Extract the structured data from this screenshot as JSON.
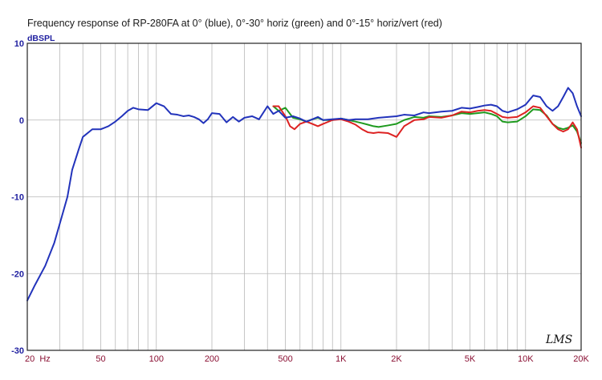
{
  "chart_data": {
    "type": "line",
    "title": "Frequency response of RP-280FA at 0° (blue), 0°-30° horiz (green) and 0°-15° horiz/vert (red)",
    "ylabel": "dBSPL",
    "xlabel": "",
    "x_scale": "log",
    "xlim": [
      20,
      20000
    ],
    "ylim": [
      -30,
      10
    ],
    "grid": true,
    "y_ticks": [
      "10",
      "0",
      "-10",
      "-20",
      "-30"
    ],
    "x_ticks": [
      {
        "value": 20,
        "label": "20  Hz"
      },
      {
        "value": 50,
        "label": "50"
      },
      {
        "value": 100,
        "label": "100"
      },
      {
        "value": 200,
        "label": "200"
      },
      {
        "value": 500,
        "label": "500"
      },
      {
        "value": 1000,
        "label": "1K"
      },
      {
        "value": 2000,
        "label": "2K"
      },
      {
        "value": 5000,
        "label": "5K"
      },
      {
        "value": 10000,
        "label": "10K"
      },
      {
        "value": 20000,
        "label": "20K"
      }
    ],
    "watermark": "LMS",
    "series": [
      {
        "color": "#2233bb",
        "x": [
          20,
          22,
          25,
          28,
          30,
          33,
          35,
          38,
          40,
          45,
          50,
          55,
          60,
          65,
          70,
          75,
          80,
          90,
          100,
          110,
          120,
          130,
          140,
          150,
          160,
          170,
          180,
          190,
          200,
          220,
          240,
          260,
          280,
          300,
          330,
          360,
          400,
          430,
          460,
          500,
          550,
          600,
          650,
          700,
          750,
          800,
          900,
          1000,
          1100,
          1200,
          1400,
          1600,
          1800,
          2000,
          2200,
          2500,
          2800,
          3000,
          3500,
          4000,
          4500,
          5000,
          5500,
          6000,
          6500,
          7000,
          7500,
          8000,
          9000,
          10000,
          11000,
          12000,
          13000,
          14000,
          15000,
          16000,
          17000,
          18000,
          19000,
          20000
        ],
        "y": [
          -23.5,
          -21.5,
          -19,
          -16,
          -13.5,
          -10,
          -6.5,
          -3.8,
          -2.2,
          -1.2,
          -1.2,
          -0.8,
          -0.2,
          0.5,
          1.2,
          1.6,
          1.4,
          1.3,
          2.2,
          1.8,
          0.8,
          0.7,
          0.5,
          0.6,
          0.4,
          0.1,
          -0.4,
          0.1,
          0.9,
          0.8,
          -0.3,
          0.4,
          -0.2,
          0.3,
          0.5,
          0.1,
          1.8,
          0.8,
          1.2,
          0.3,
          0.5,
          0.2,
          -0.2,
          0.1,
          0.4,
          0.0,
          0.1,
          0.2,
          0.0,
          0.1,
          0.1,
          0.3,
          0.4,
          0.5,
          0.7,
          0.6,
          1.0,
          0.9,
          1.1,
          1.2,
          1.6,
          1.5,
          1.7,
          1.9,
          2.0,
          1.8,
          1.2,
          1.0,
          1.4,
          2.0,
          3.2,
          3.0,
          1.8,
          1.2,
          1.8,
          3.0,
          4.2,
          3.5,
          1.8,
          0.5
        ]
      },
      {
        "color": "#1e9a1e",
        "x": [
          430,
          460,
          500,
          550,
          600,
          650,
          700,
          750,
          800,
          900,
          1000,
          1100,
          1200,
          1300,
          1400,
          1500,
          1600,
          1800,
          2000,
          2200,
          2500,
          2800,
          3000,
          3500,
          4000,
          4500,
          5000,
          5500,
          6000,
          6500,
          7000,
          7500,
          8000,
          9000,
          10000,
          11000,
          12000,
          13000,
          14000,
          15000,
          16000,
          17000,
          18000,
          19000,
          20000
        ],
        "y": [
          1.8,
          1.2,
          1.6,
          0.3,
          0.1,
          -0.2,
          0.1,
          0.3,
          0.0,
          0.0,
          0.2,
          0.0,
          -0.2,
          -0.4,
          -0.6,
          -0.8,
          -0.9,
          -0.7,
          -0.5,
          0.0,
          0.4,
          0.3,
          0.5,
          0.4,
          0.6,
          0.9,
          0.8,
          0.9,
          1.0,
          0.8,
          0.5,
          -0.2,
          -0.3,
          -0.2,
          0.5,
          1.4,
          1.3,
          0.6,
          -0.5,
          -1.0,
          -1.2,
          -1.0,
          -0.7,
          -1.5,
          -3.0
        ]
      },
      {
        "color": "#dd2222",
        "x": [
          430,
          460,
          500,
          530,
          560,
          600,
          650,
          700,
          750,
          800,
          900,
          1000,
          1100,
          1200,
          1300,
          1400,
          1500,
          1600,
          1800,
          2000,
          2200,
          2500,
          2800,
          3000,
          3500,
          4000,
          4500,
          5000,
          5500,
          6000,
          6500,
          7000,
          7500,
          8000,
          9000,
          10000,
          11000,
          12000,
          13000,
          14000,
          15000,
          16000,
          17000,
          18000,
          19000,
          20000
        ],
        "y": [
          1.8,
          1.8,
          0.5,
          -0.8,
          -1.2,
          -0.5,
          -0.2,
          -0.5,
          -0.8,
          -0.5,
          0.0,
          0.1,
          -0.2,
          -0.6,
          -1.2,
          -1.6,
          -1.7,
          -1.6,
          -1.7,
          -2.2,
          -0.8,
          0.0,
          0.1,
          0.4,
          0.3,
          0.6,
          1.1,
          1.0,
          1.2,
          1.3,
          1.2,
          0.8,
          0.4,
          0.3,
          0.4,
          1.0,
          1.8,
          1.6,
          0.5,
          -0.5,
          -1.2,
          -1.5,
          -1.2,
          -0.3,
          -1.2,
          -3.6
        ]
      }
    ]
  }
}
